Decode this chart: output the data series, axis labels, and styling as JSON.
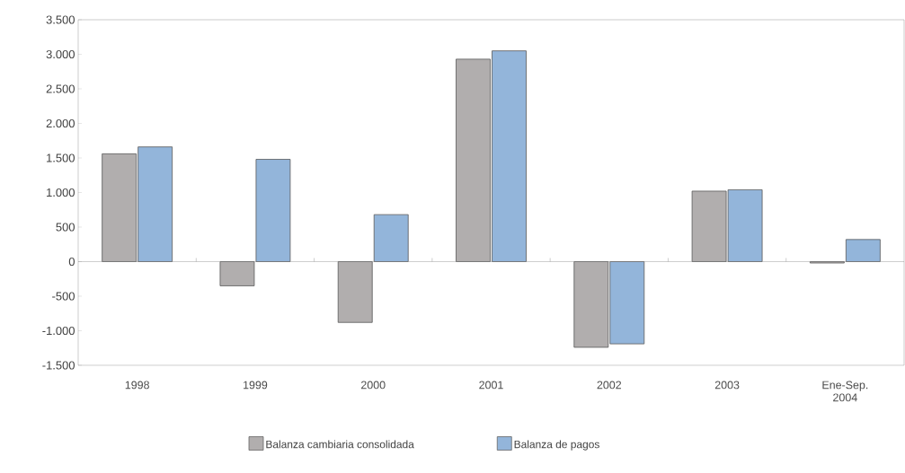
{
  "chart_data": {
    "type": "bar",
    "categories": [
      "1998",
      "1999",
      "2000",
      "2001",
      "2002",
      "2003",
      "Ene-Sep. 2004"
    ],
    "series": [
      {
        "name": "Balanza cambiaria consolidada",
        "color": "#b1aeae",
        "values": [
          1560,
          -350,
          -880,
          2930,
          -1240,
          1020,
          -20
        ]
      },
      {
        "name": "Balanza de pagos",
        "color": "#93b5da",
        "values": [
          1660,
          1480,
          680,
          3050,
          -1190,
          1040,
          320
        ]
      }
    ],
    "ylim": [
      -1500,
      3500
    ],
    "yticks": [
      {
        "value": -1500,
        "label": "-1.500"
      },
      {
        "value": -1000,
        "label": "-1.000"
      },
      {
        "value": -500,
        "label": "-500"
      },
      0,
      500,
      {
        "value": 1000,
        "label": "1.000"
      },
      {
        "value": 1500,
        "label": "1.500"
      },
      {
        "value": 2000,
        "label": "2.000"
      },
      {
        "value": 2500,
        "label": "2.500"
      },
      {
        "value": 3000,
        "label": "3.000"
      },
      {
        "value": 3500,
        "label": "3.500"
      }
    ],
    "legend": "bottom"
  }
}
